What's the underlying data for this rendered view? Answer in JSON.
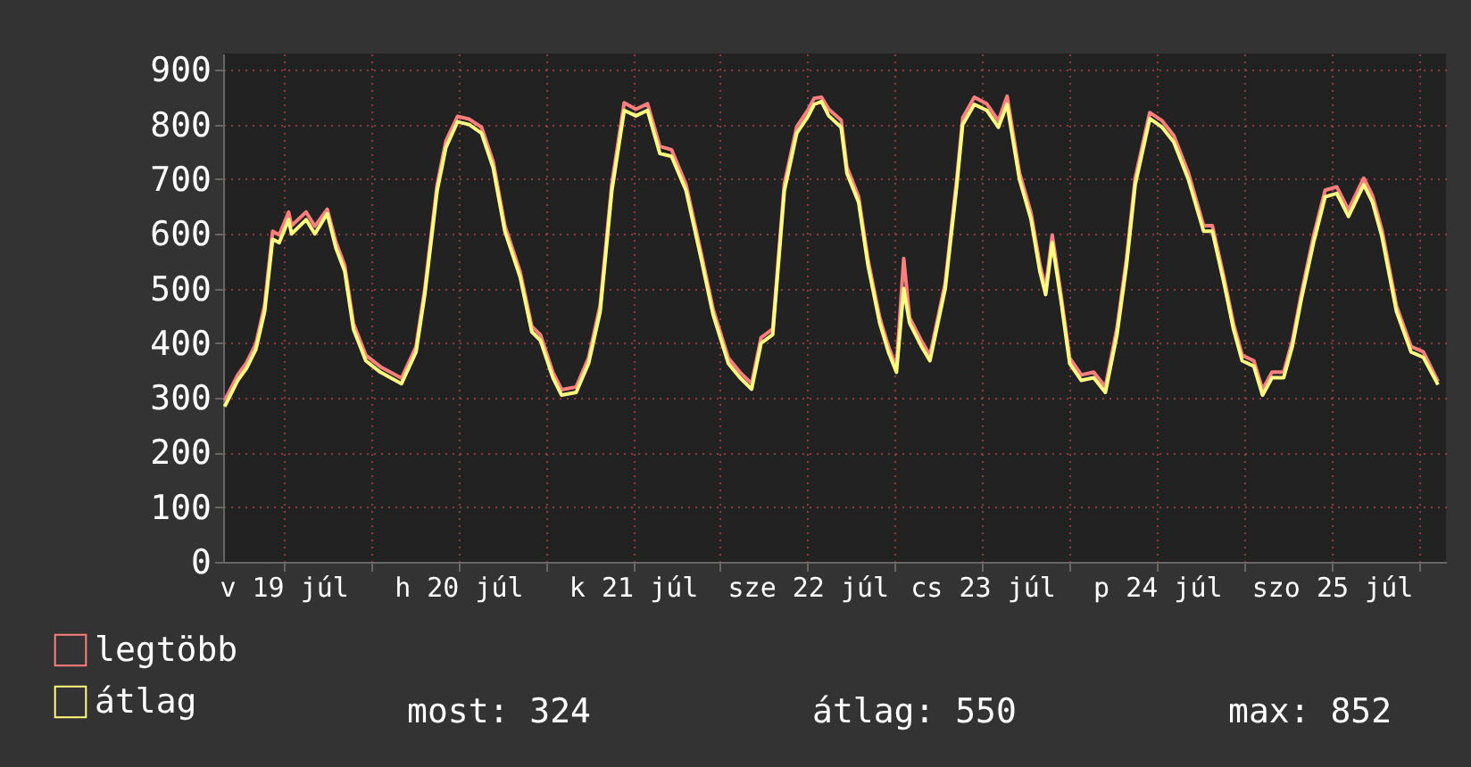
{
  "chart_data": {
    "type": "line",
    "x": [
      "--07-19T03:54",
      "--07-19T05:42",
      "--07-19T06:54",
      "--07-19T08:12",
      "--07-19T09:24",
      "--07-19T10:30",
      "--07-19T11:24",
      "--07-19T12:42",
      "--07-19T13:06",
      "--07-19T15:06",
      "--07-19T16:18",
      "--07-19T18:00",
      "--07-19T19:12",
      "--07-19T20:24",
      "--07-19T21:36",
      "--07-19T23:18",
      "--07-20T01:18",
      "--07-20T04:12",
      "--07-20T06:12",
      "--07-20T07:24",
      "--07-20T09:06",
      "--07-20T10:18",
      "--07-20T11:54",
      "--07-20T13:30",
      "--07-20T15:12",
      "--07-20T16:48",
      "--07-20T18:24",
      "--07-20T20:30",
      "--07-20T22:06",
      "--07-20T23:18",
      "--07-21T01:00",
      "--07-21T02:12",
      "--07-21T04:12",
      "--07-21T05:54",
      "--07-21T07:30",
      "--07-21T09:06",
      "--07-21T10:48",
      "--07-21T12:24",
      "--07-21T14:00",
      "--07-21T15:42",
      "--07-21T17:18",
      "--07-21T19:18",
      "--07-21T21:24",
      "--07-21T23:00",
      "--07-22T01:06",
      "--07-22T02:42",
      "--07-22T04:18",
      "--07-22T05:36",
      "--07-22T07:12",
      "--07-22T08:48",
      "--07-22T10:30",
      "--07-22T12:06",
      "--07-22T12:54",
      "--07-22T13:54",
      "--07-22T14:54",
      "--07-22T16:36",
      "--07-22T17:24",
      "--07-22T19:00",
      "--07-22T20:18",
      "--07-22T21:54",
      "--07-22T23:06",
      "--07-23T00:12",
      "--07-23T01:12",
      "--07-23T02:00",
      "--07-23T03:36",
      "--07-23T04:48",
      "--07-23T06:54",
      "--07-23T08:30",
      "--07-23T09:18",
      "--07-23T10:54",
      "--07-23T12:36",
      "--07-23T14:12",
      "--07-23T15:24",
      "--07-23T17:06",
      "--07-23T18:42",
      "--07-23T19:54",
      "--07-23T20:42",
      "--07-23T21:36",
      "--07-23T22:48",
      "--07-24T00:00",
      "--07-24T01:36",
      "--07-24T03:18",
      "--07-24T04:54",
      "--07-24T06:30",
      "--07-24T07:48",
      "--07-24T09:00",
      "--07-24T11:00",
      "--07-24T12:42",
      "--07-24T14:18",
      "--07-24T16:18",
      "--07-24T18:24",
      "--07-24T19:36",
      "--07-24T21:12",
      "--07-24T22:30",
      "--07-24T23:42",
      "--07-25T01:18",
      "--07-25T02:30",
      "--07-25T03:48",
      "--07-25T05:24",
      "--07-25T06:36",
      "--07-25T07:48",
      "--07-25T09:30",
      "--07-25T11:06",
      "--07-25T12:42",
      "--07-25T14:18",
      "--07-25T15:36",
      "--07-25T16:24",
      "--07-25T17:36",
      "--07-25T18:54",
      "--07-25T20:54",
      "--07-25T22:54",
      "--07-26T00:36",
      "--07-26T02:36"
    ],
    "series": [
      {
        "name": "legtöbb",
        "color": "#ff7f7f",
        "values": [
          295,
          342,
          364,
          399,
          470,
          605,
          598,
          640,
          615,
          640,
          614,
          645,
          585,
          542,
          436,
          378,
          357,
          336,
          394,
          499,
          690,
          770,
          815,
          810,
          795,
          732,
          615,
          531,
          431,
          415,
          347,
          315,
          320,
          373,
          470,
          692,
          840,
          828,
          838,
          760,
          754,
          690,
          563,
          463,
          373,
          347,
          326,
          410,
          426,
          692,
          796,
          828,
          848,
          850,
          828,
          808,
          722,
          668,
          552,
          447,
          394,
          357,
          555,
          447,
          405,
          378,
          510,
          702,
          812,
          850,
          838,
          807,
          852,
          712,
          638,
          544,
          500,
          598,
          489,
          373,
          342,
          347,
          320,
          428,
          554,
          702,
          822,
          807,
          780,
          712,
          615,
          615,
          520,
          436,
          378,
          368,
          315,
          347,
          347,
          405,
          489,
          596,
          680,
          686,
          644,
          680,
          702,
          670,
          607,
          468,
          394,
          384,
          330
        ]
      },
      {
        "name": "átlag",
        "color": "#ffff80",
        "values": [
          284,
          332,
          354,
          389,
          458,
          590,
          584,
          626,
          600,
          626,
          600,
          637,
          574,
          532,
          426,
          368,
          347,
          326,
          384,
          489,
          679,
          758,
          805,
          800,
          784,
          721,
          605,
          521,
          421,
          405,
          337,
          305,
          310,
          363,
          458,
          679,
          826,
          816,
          826,
          747,
          742,
          679,
          553,
          453,
          363,
          337,
          316,
          400,
          416,
          679,
          784,
          816,
          837,
          842,
          816,
          795,
          711,
          658,
          542,
          437,
          384,
          347,
          500,
          437,
          395,
          368,
          500,
          690,
          800,
          837,
          826,
          795,
          837,
          700,
          626,
          532,
          489,
          584,
          479,
          363,
          332,
          337,
          310,
          416,
          542,
          690,
          811,
          795,
          768,
          700,
          605,
          605,
          510,
          426,
          368,
          358,
          305,
          337,
          337,
          395,
          479,
          584,
          668,
          674,
          632,
          668,
          690,
          658,
          595,
          458,
          384,
          374,
          324
        ]
      }
    ],
    "xlim": [
      "--07-19T03:42",
      "--07-26T03:42"
    ],
    "xticks": [
      {
        "value": "--07-19T12:00",
        "label": "v 19 júl"
      },
      {
        "value": "--07-20T00:00",
        "label": null
      },
      {
        "value": "--07-20T12:00",
        "label": "h 20 júl"
      },
      {
        "value": "--07-21T00:00",
        "label": null
      },
      {
        "value": "--07-21T12:00",
        "label": "k 21 júl"
      },
      {
        "value": "--07-22T00:00",
        "label": null
      },
      {
        "value": "--07-22T12:00",
        "label": "sze 22 júl"
      },
      {
        "value": "--07-23T00:00",
        "label": null
      },
      {
        "value": "--07-23T12:00",
        "label": "cs 23 júl"
      },
      {
        "value": "--07-24T00:00",
        "label": null
      },
      {
        "value": "--07-24T12:00",
        "label": "p 24 júl"
      },
      {
        "value": "--07-25T00:00",
        "label": null
      },
      {
        "value": "--07-25T12:00",
        "label": "szo 25 júl"
      },
      {
        "value": "--07-26T00:00",
        "label": null
      }
    ],
    "ylim": [
      0,
      930
    ],
    "yticks": [
      0,
      100,
      200,
      300,
      400,
      500,
      600,
      700,
      800,
      900
    ],
    "grid": true,
    "legend": "bottom left",
    "marker": "none",
    "line_style": "solid",
    "annotations": [
      "most: 324",
      "átlag: 550",
      "max: 852"
    ]
  }
}
